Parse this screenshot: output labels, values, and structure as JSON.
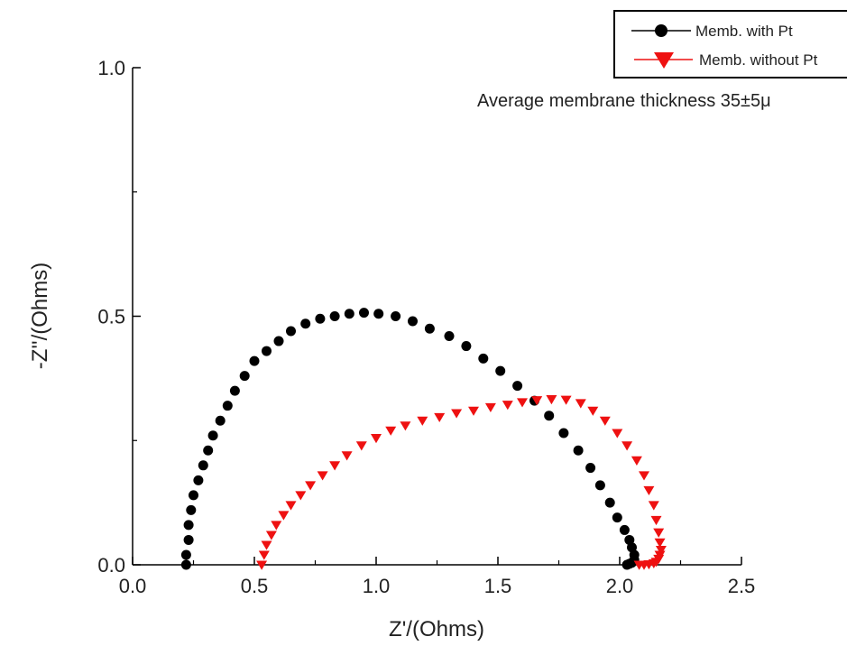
{
  "chart_data": {
    "type": "scatter",
    "xlabel": "Z'/(Ohms)",
    "ylabel": "-Z''/(Ohms)",
    "xlim": [
      0,
      2.5
    ],
    "ylim": [
      0,
      1.0
    ],
    "x_ticks": [
      0.0,
      0.5,
      1.0,
      1.5,
      2.0,
      2.5
    ],
    "x_tick_labels": [
      "0.0",
      "0.5",
      "1.0",
      "1.5",
      "2.0",
      "2.5"
    ],
    "y_ticks": [
      0.0,
      0.5,
      1.0
    ],
    "y_tick_labels": [
      "0.0",
      "0.5",
      "1.0"
    ],
    "grid": false,
    "legend_position": "top-right",
    "annotation": "Average membrane thickness 35±5μ",
    "series": [
      {
        "name": "Memb. with Pt",
        "color": "#000000",
        "marker": "circle",
        "x": [
          0.22,
          0.22,
          0.23,
          0.23,
          0.24,
          0.25,
          0.27,
          0.29,
          0.31,
          0.33,
          0.36,
          0.39,
          0.42,
          0.46,
          0.5,
          0.55,
          0.6,
          0.65,
          0.71,
          0.77,
          0.83,
          0.89,
          0.95,
          1.01,
          1.08,
          1.15,
          1.22,
          1.3,
          1.37,
          1.44,
          1.51,
          1.58,
          1.65,
          1.71,
          1.77,
          1.83,
          1.88,
          1.92,
          1.96,
          1.99,
          2.02,
          2.04,
          2.05,
          2.06,
          2.06,
          2.05,
          2.04,
          2.03
        ],
        "y": [
          0.0,
          0.02,
          0.05,
          0.08,
          0.11,
          0.14,
          0.17,
          0.2,
          0.23,
          0.26,
          0.29,
          0.32,
          0.35,
          0.38,
          0.41,
          0.43,
          0.45,
          0.47,
          0.485,
          0.495,
          0.5,
          0.505,
          0.507,
          0.505,
          0.5,
          0.49,
          0.475,
          0.46,
          0.44,
          0.415,
          0.39,
          0.36,
          0.33,
          0.3,
          0.265,
          0.23,
          0.195,
          0.16,
          0.125,
          0.095,
          0.07,
          0.05,
          0.035,
          0.02,
          0.01,
          0.004,
          0.002,
          0.0
        ]
      },
      {
        "name": "Memb. without Pt",
        "color": "#ee1111",
        "marker": "triangle-down",
        "x": [
          0.53,
          0.54,
          0.55,
          0.57,
          0.59,
          0.62,
          0.65,
          0.69,
          0.73,
          0.78,
          0.83,
          0.88,
          0.94,
          1.0,
          1.06,
          1.12,
          1.19,
          1.26,
          1.33,
          1.4,
          1.47,
          1.54,
          1.6,
          1.66,
          1.72,
          1.78,
          1.84,
          1.89,
          1.94,
          1.99,
          2.03,
          2.07,
          2.1,
          2.12,
          2.14,
          2.15,
          2.16,
          2.165,
          2.17,
          2.165,
          2.16,
          2.15,
          2.14,
          2.12,
          2.1,
          2.08
        ],
        "y": [
          0.0,
          0.02,
          0.04,
          0.06,
          0.08,
          0.1,
          0.12,
          0.14,
          0.16,
          0.18,
          0.2,
          0.22,
          0.24,
          0.255,
          0.27,
          0.28,
          0.29,
          0.297,
          0.305,
          0.31,
          0.317,
          0.322,
          0.327,
          0.331,
          0.333,
          0.332,
          0.325,
          0.31,
          0.29,
          0.265,
          0.24,
          0.21,
          0.18,
          0.15,
          0.12,
          0.09,
          0.065,
          0.045,
          0.03,
          0.02,
          0.012,
          0.006,
          0.003,
          0.001,
          0.0,
          0.0
        ]
      }
    ]
  }
}
